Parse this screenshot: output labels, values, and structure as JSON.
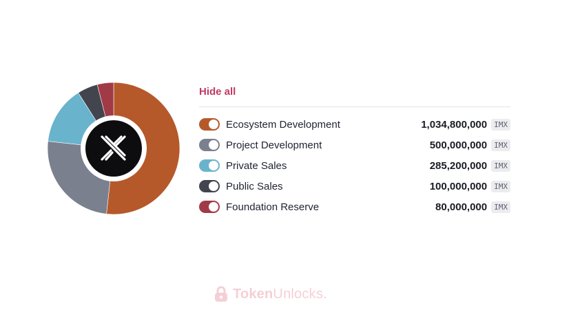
{
  "chart_data": {
    "type": "pie",
    "donut": true,
    "categories": [
      "Ecosystem Development",
      "Project Development",
      "Private Sales",
      "Public Sales",
      "Foundation Reserve"
    ],
    "values": [
      1034800000,
      500000000,
      285200000,
      100000000,
      80000000
    ],
    "value_labels": [
      "1,034,800,000",
      "500,000,000",
      "285,200,000",
      "100,000,000",
      "80,000,000"
    ],
    "unit": "IMX",
    "colors": [
      "#b5592a",
      "#7b808f",
      "#6ab3cc",
      "#42454d",
      "#a13a47"
    ],
    "enabled": [
      true,
      true,
      true,
      true,
      true
    ],
    "center_icon": "immutable-x-logo",
    "legend_placement": "right"
  },
  "legend": {
    "hide_all_label": "Hide all"
  },
  "watermark": {
    "text_a": "Token",
    "text_b": "Unlocks.",
    "icon": "lock-icon",
    "color": "#f5cfd6"
  }
}
